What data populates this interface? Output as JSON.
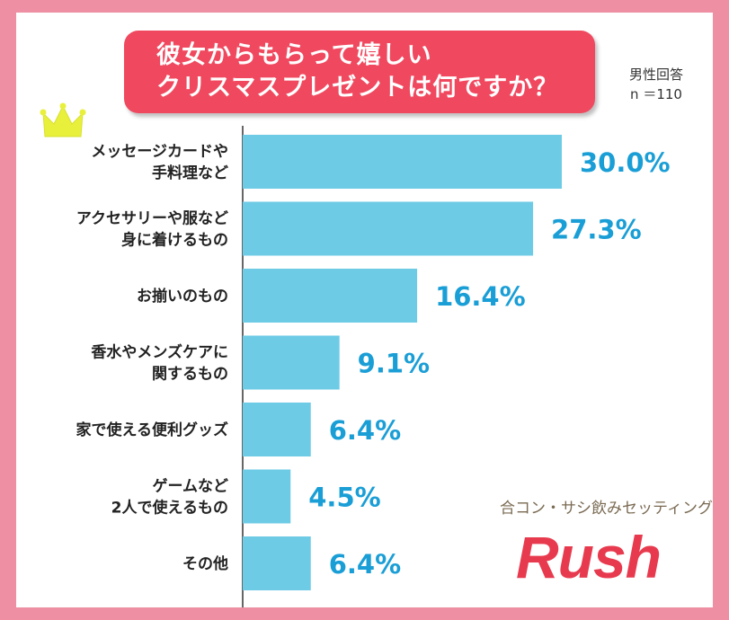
{
  "title": {
    "line1": "彼女からもらって嬉しい",
    "line2": "クリスマスプレゼントは何ですか？"
  },
  "sample": {
    "line1": "男性回答",
    "line2": "n ＝110"
  },
  "brand": {
    "subtitle": "合コン・サシ飲みセッティング",
    "name": "Rush"
  },
  "icons": {
    "crown": "crown-icon"
  },
  "colors": {
    "bar": "#6ecbe6",
    "value_text": "#1a9ed6",
    "title_bg": "#f0495f",
    "frame": "#ee8fa3",
    "crown": "#e8f03c",
    "brand": "#e83a4e"
  },
  "chart_data": {
    "type": "bar",
    "orientation": "horizontal",
    "categories": [
      [
        "メッセージカードや",
        "手料理など"
      ],
      [
        "アクセサリーや服など",
        "身に着けるもの"
      ],
      [
        "お揃いのもの"
      ],
      [
        "香水やメンズケアに",
        "関するもの"
      ],
      [
        "家で使える便利グッズ"
      ],
      [
        "ゲームなど",
        "2人で使えるもの"
      ],
      [
        "その他"
      ]
    ],
    "values": [
      30.0,
      27.3,
      16.4,
      9.1,
      6.4,
      4.5,
      6.4
    ],
    "value_labels": [
      "30.0%",
      "27.3%",
      "16.4%",
      "9.1%",
      "6.4%",
      "4.5%",
      "6.4%"
    ],
    "unit": "%",
    "xlim": [
      0,
      40
    ],
    "grid": false,
    "legend": "none"
  }
}
